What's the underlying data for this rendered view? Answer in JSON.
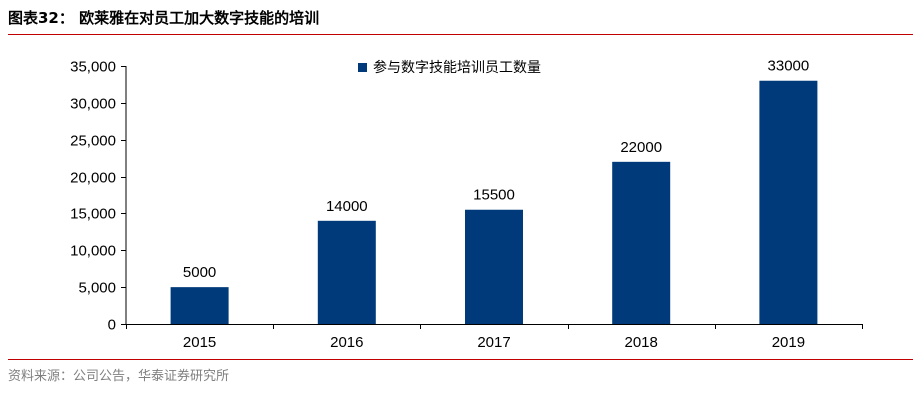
{
  "figure": {
    "title": "图表32：  欧莱雅在对员工加大数字技能的培训",
    "source": "资料来源：公司公告，华泰证券研究所"
  },
  "chart_data": {
    "type": "bar",
    "categories": [
      "2015",
      "2016",
      "2017",
      "2018",
      "2019"
    ],
    "series": [
      {
        "name": "参与数字技能培训员工数量",
        "values": [
          5000,
          14000,
          15500,
          22000,
          33000
        ],
        "color": "#003a7a"
      }
    ],
    "data_labels": [
      "5000",
      "14000",
      "15500",
      "22000",
      "33000"
    ],
    "y_ticks": [
      0,
      5000,
      10000,
      15000,
      20000,
      25000,
      30000,
      35000
    ],
    "y_tick_labels": [
      "0",
      "5,000",
      "10,000",
      "15,000",
      "20,000",
      "25,000",
      "30,000",
      "35,000"
    ],
    "ylim": [
      0,
      35000
    ],
    "grid": false,
    "legend_position": "top-center",
    "colors": {
      "bar": "#003a7a",
      "title_rule": "#c00000",
      "source_text": "#7f7f7f"
    }
  }
}
